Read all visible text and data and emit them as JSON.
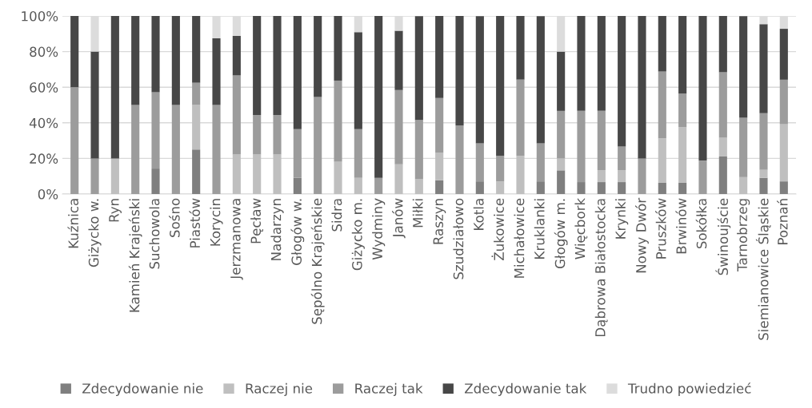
{
  "chart_data": {
    "type": "bar",
    "stacked": true,
    "categories": [
      "Kuźnica",
      "Giżycko w.",
      "Ryn",
      "Kamień Krajeński",
      "Suchowola",
      "Sośno",
      "Piastów",
      "Korycin",
      "Jerzmanowa",
      "Pęcław",
      "Nadarzyn",
      "Głogów w.",
      "Sępólno Krajeńskie",
      "Sidra",
      "Giżycko m.",
      "Wydminy",
      "Janów",
      "Miłki",
      "Raszyn",
      "Szudziałowo",
      "Kotla",
      "Żukowice",
      "Michałowice",
      "Kruklanki",
      "Głogów m.",
      "Więcbork",
      "Dąbrowa Białostocka",
      "Krynki",
      "Nowy Dwór",
      "Pruszków",
      "Brwinów",
      "Sokółka",
      "Świnoujście",
      "Tarnobrzeg",
      "Siemianowice Śląskie",
      "Poznań"
    ],
    "series": [
      {
        "name": "Zdecydowanie nie",
        "color": "#7f7f7f",
        "values": [
          0,
          0,
          0,
          0,
          14.3,
          0,
          25,
          0,
          0,
          0,
          0,
          9.1,
          0,
          0,
          0,
          0,
          0,
          0,
          7.7,
          0,
          7.1,
          0,
          0,
          7.1,
          13.3,
          6.7,
          6.7,
          6.7,
          0,
          6.3,
          6.3,
          0,
          21.1,
          0,
          9.1,
          7.1
        ]
      },
      {
        "name": "Raczej nie",
        "color": "#bfbfbf",
        "values": [
          0,
          0,
          20,
          0,
          0,
          0,
          25,
          0,
          22.2,
          22.2,
          22.2,
          0,
          0,
          18.2,
          9.1,
          0,
          16.7,
          8.3,
          15.4,
          0,
          0,
          7.1,
          21.4,
          0,
          6.7,
          0,
          6.7,
          6.7,
          0,
          25,
          31.3,
          0,
          10.5,
          9.5,
          4.5,
          32.1
        ]
      },
      {
        "name": "Raczej tak",
        "color": "#9c9c9c",
        "values": [
          60,
          20,
          0,
          50,
          42.9,
          50,
          12.5,
          50,
          44.4,
          22.2,
          22.2,
          27.3,
          54.5,
          45.5,
          27.3,
          9.1,
          41.7,
          33.3,
          30.8,
          38.5,
          21.4,
          14.3,
          42.9,
          21.4,
          26.7,
          40,
          33.3,
          13.3,
          20,
          37.5,
          18.8,
          18.8,
          36.8,
          33.3,
          31.8,
          25
        ]
      },
      {
        "name": "Zdecydowanie tak",
        "color": "#474747",
        "values": [
          40,
          60,
          80,
          50,
          42.9,
          50,
          37.5,
          37.5,
          22.2,
          55.6,
          55.6,
          63.6,
          45.5,
          36.4,
          54.5,
          90.9,
          33.3,
          58.3,
          46.2,
          61.5,
          71.4,
          78.6,
          35.7,
          71.4,
          33.3,
          53.3,
          53.3,
          73.3,
          80,
          31.3,
          43.8,
          81.3,
          31.6,
          57.1,
          50,
          28.6
        ]
      },
      {
        "name": "Trudno powiedzieć",
        "color": "#dcdcdc",
        "values": [
          0,
          20,
          0,
          0,
          0,
          0,
          0,
          12.5,
          11.1,
          0,
          0,
          0,
          0,
          0,
          9.1,
          0,
          8.3,
          0,
          0,
          0,
          0,
          0,
          0,
          0,
          20,
          0,
          0,
          0,
          0,
          0,
          0,
          0,
          0,
          0,
          4.5,
          7.1
        ]
      }
    ],
    "ylim": [
      0,
      100
    ],
    "yticks": [
      {
        "value": 0,
        "label": "0%"
      },
      {
        "value": 20,
        "label": "20%"
      },
      {
        "value": 40,
        "label": "40%"
      },
      {
        "value": 60,
        "label": "60%"
      },
      {
        "value": 80,
        "label": "80%"
      },
      {
        "value": 100,
        "label": "100%"
      }
    ],
    "grid": "y",
    "legend": "bottom"
  }
}
